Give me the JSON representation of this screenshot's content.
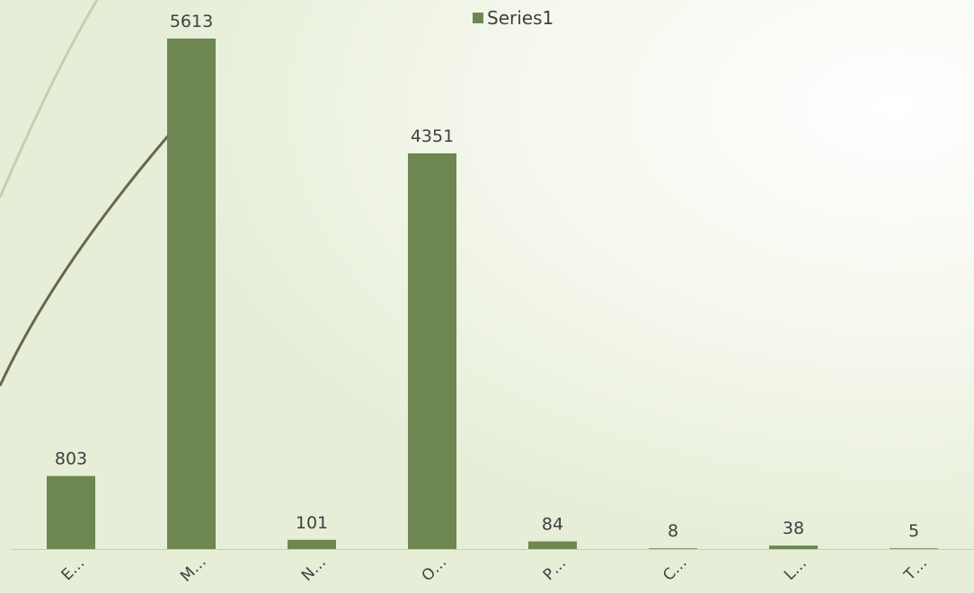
{
  "chart_data": {
    "type": "bar",
    "categories": [
      "E…",
      "M…",
      "N…",
      "O…",
      "P…",
      "C…",
      "L…",
      "T…"
    ],
    "series": [
      {
        "name": "Series1",
        "values": [
          803,
          5613,
          101,
          4351,
          84,
          8,
          38,
          5
        ]
      }
    ],
    "ylim": [
      0,
      5613
    ],
    "grid": false,
    "legend_position": "top",
    "bar_color": "#6e8650",
    "axis_color": "#c9cdbf",
    "label_color": "#404040"
  }
}
